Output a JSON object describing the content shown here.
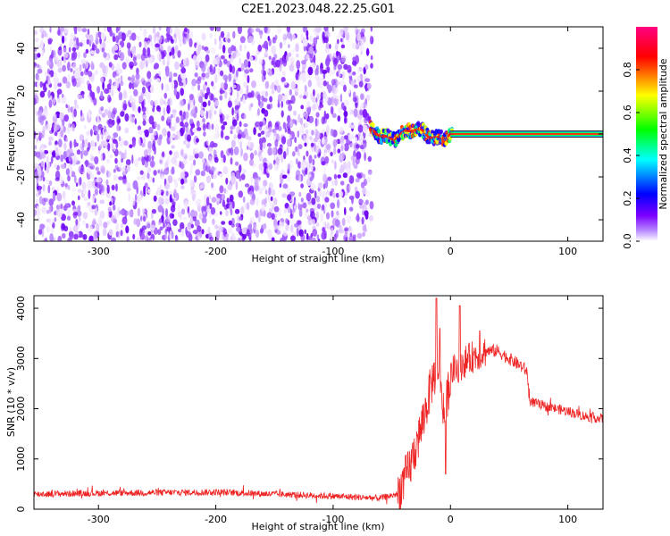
{
  "title": "C2E1.2023.048.22.25.G01",
  "chart_data": [
    {
      "type": "heatmap",
      "xlabel": "Height of straight line (km)",
      "ylabel": "Frequency (Hz)",
      "xlim": [
        -355,
        130
      ],
      "ylim": [
        -50,
        50
      ],
      "xticks": [
        -300,
        -200,
        -100,
        0,
        100
      ],
      "yticks": [
        -40,
        -20,
        0,
        20,
        40
      ],
      "colorbar": {
        "label": "Normalized spectral amplitude",
        "ticks": [
          "0.0",
          "0.2",
          "0.4",
          "0.6",
          "0.8"
        ],
        "range": [
          0,
          1
        ],
        "colors": [
          "#ffffff",
          "#7b00ff",
          "#0000ff",
          "#00ffff",
          "#00ff00",
          "#ffff00",
          "#ff0000",
          "#ff0080"
        ]
      },
      "regions": [
        {
          "kind": "noise",
          "x": [
            -355,
            -67
          ],
          "y": [
            -50,
            50
          ],
          "amplitude": [
            0.0,
            0.25
          ]
        },
        {
          "kind": "wavy-signal",
          "x": [
            -68,
            2
          ],
          "y": [
            -5,
            5
          ],
          "amplitude": [
            0.3,
            0.9
          ]
        },
        {
          "kind": "steady-line",
          "x": [
            0,
            130
          ],
          "y": [
            -1.5,
            1.5
          ],
          "amplitude": [
            0.8,
            1.0
          ]
        }
      ],
      "grid": false
    },
    {
      "type": "line",
      "xlabel": "Height of straight line (km)",
      "ylabel": "SNR (10 * v/v)",
      "xlim": [
        -355,
        130
      ],
      "ylim": [
        0,
        4250
      ],
      "xticks": [
        -300,
        -200,
        -100,
        0,
        100
      ],
      "yticks": [
        0,
        1000,
        2000,
        3000,
        4000
      ],
      "color": "#ee2222",
      "series": [
        {
          "x": [
            -355,
            -300,
            -250,
            -200,
            -150,
            -100,
            -60,
            -45,
            -35,
            -25,
            -15,
            -10,
            -5,
            0,
            10,
            20,
            30,
            40,
            50,
            60,
            65,
            68,
            80,
            100,
            115,
            130
          ],
          "y": [
            300,
            320,
            330,
            340,
            300,
            260,
            220,
            300,
            800,
            1600,
            2600,
            2900,
            1800,
            2700,
            2900,
            3050,
            3150,
            3150,
            3000,
            2850,
            2750,
            2150,
            2050,
            1950,
            1850,
            1800
          ],
          "spikes": [
            [
              -12,
              4200
            ],
            [
              -9,
              3600
            ],
            [
              8,
              4050
            ],
            [
              25,
              3550
            ],
            [
              -4,
              700
            ]
          ]
        }
      ],
      "grid": false
    }
  ]
}
